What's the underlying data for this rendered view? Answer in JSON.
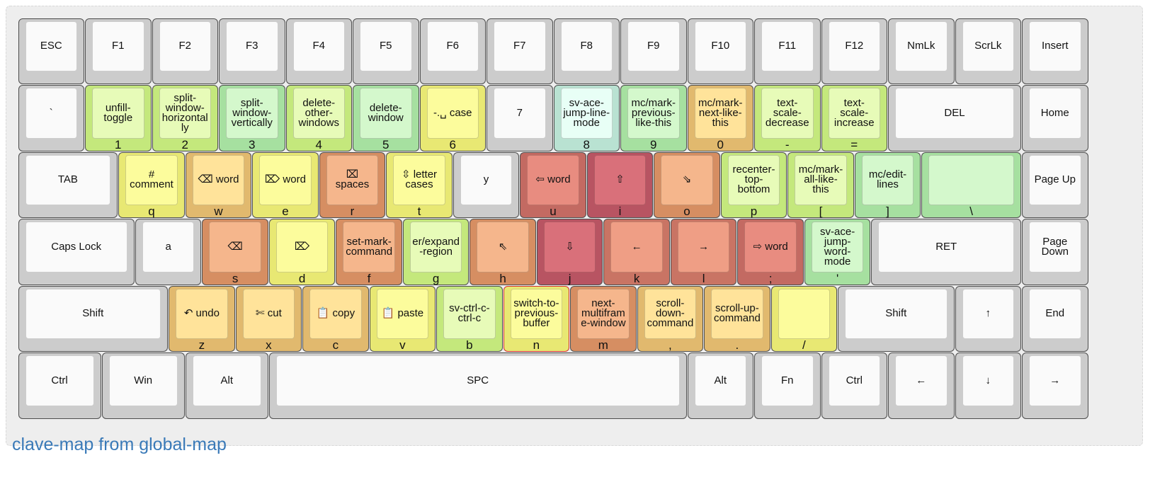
{
  "title": "clave-map from global-map",
  "heat_colors": {
    "none": [
      "#cccccc",
      "#fafafa"
    ],
    "yellow": [
      "#e8e873",
      "#fcfc9c"
    ],
    "lime": [
      "#c4e87c",
      "#e7fbb8"
    ],
    "green": [
      "#a6e0a0",
      "#d4f8cc"
    ],
    "mint": [
      "#b9e2d2",
      "#e8fff6"
    ],
    "gold": [
      "#e1b96e",
      "#ffe39a"
    ],
    "peach": [
      "#d68e62",
      "#f5b68c"
    ],
    "orange": [
      "#c97464",
      "#ef9e85"
    ],
    "salmon": [
      "#c36a62",
      "#e88c80"
    ],
    "red": [
      "#b85462",
      "#d9707a"
    ]
  },
  "rows": [
    [
      {
        "label": "ESC",
        "sub": "",
        "heat": "none"
      },
      {
        "label": "F1",
        "sub": "",
        "heat": "none"
      },
      {
        "label": "F2",
        "sub": "",
        "heat": "none"
      },
      {
        "label": "F3",
        "sub": "",
        "heat": "none"
      },
      {
        "label": "F4",
        "sub": "",
        "heat": "none"
      },
      {
        "label": "F5",
        "sub": "",
        "heat": "none"
      },
      {
        "label": "F6",
        "sub": "",
        "heat": "none"
      },
      {
        "label": "F7",
        "sub": "",
        "heat": "none"
      },
      {
        "label": "F8",
        "sub": "",
        "heat": "none"
      },
      {
        "label": "F9",
        "sub": "",
        "heat": "none"
      },
      {
        "label": "F10",
        "sub": "",
        "heat": "none"
      },
      {
        "label": "F11",
        "sub": "",
        "heat": "none"
      },
      {
        "label": "F12",
        "sub": "",
        "heat": "none"
      },
      {
        "label": "NmLk",
        "sub": "",
        "heat": "none"
      },
      {
        "label": "ScrLk",
        "sub": "",
        "heat": "none"
      },
      {
        "label": "Insert",
        "sub": "",
        "heat": "none"
      }
    ],
    [
      {
        "label": "`",
        "sub": "",
        "heat": "none"
      },
      {
        "label": "unfill-toggle",
        "sub": "1",
        "heat": "lime"
      },
      {
        "label": "split-window-horizontally",
        "sub": "2",
        "heat": "lime"
      },
      {
        "label": "split-window-vertically",
        "sub": "3",
        "heat": "green"
      },
      {
        "label": "delete-other-windows",
        "sub": "4",
        "heat": "lime"
      },
      {
        "label": "delete-window",
        "sub": "5",
        "heat": "green"
      },
      {
        "label": "-.␣ case",
        "sub": "6",
        "heat": "yellow"
      },
      {
        "label": "7",
        "sub": "",
        "heat": "none"
      },
      {
        "label": "sv-ace-jump-line-mode",
        "sub": "8",
        "heat": "mint"
      },
      {
        "label": "mc/mark-previous-like-this",
        "sub": "9",
        "heat": "green"
      },
      {
        "label": "mc/mark-next-like-this",
        "sub": "0",
        "heat": "gold"
      },
      {
        "label": "text-scale-decrease",
        "sub": "-",
        "heat": "lime"
      },
      {
        "label": "text-scale-increase",
        "sub": "=",
        "heat": "lime"
      },
      {
        "label": "DEL",
        "sub": "",
        "heat": "none"
      },
      {
        "label": "Home",
        "sub": "",
        "heat": "none"
      }
    ],
    [
      {
        "label": "TAB",
        "sub": "",
        "heat": "none"
      },
      {
        "label": "# comment",
        "sub": "q",
        "heat": "yellow"
      },
      {
        "label": "⌫ word",
        "sub": "w",
        "heat": "gold"
      },
      {
        "label": "⌦ word",
        "sub": "e",
        "heat": "yellow"
      },
      {
        "label": "⌧ spaces",
        "sub": "r",
        "heat": "peach"
      },
      {
        "label": "⇳ letter cases",
        "sub": "t",
        "heat": "yellow"
      },
      {
        "label": "y",
        "sub": "",
        "heat": "none"
      },
      {
        "label": "⇦ word",
        "sub": "u",
        "heat": "salmon"
      },
      {
        "label": "⇧",
        "sub": "i",
        "heat": "red"
      },
      {
        "label": "⇘",
        "sub": "o",
        "heat": "peach"
      },
      {
        "label": "recenter-top-bottom",
        "sub": "p",
        "heat": "lime"
      },
      {
        "label": "mc/mark-all-like-this",
        "sub": "[",
        "heat": "lime"
      },
      {
        "label": "mc/edit-lines",
        "sub": "]",
        "heat": "green"
      },
      {
        "label": "",
        "sub": "\\",
        "heat": "green"
      },
      {
        "label": "Page Up",
        "sub": "",
        "heat": "none"
      }
    ],
    [
      {
        "label": "Caps Lock",
        "sub": "",
        "heat": "none"
      },
      {
        "label": "a",
        "sub": "",
        "heat": "none"
      },
      {
        "label": "⌫",
        "sub": "s",
        "heat": "peach"
      },
      {
        "label": "⌦",
        "sub": "d",
        "heat": "yellow"
      },
      {
        "label": "set-mark-command",
        "sub": "f",
        "heat": "peach"
      },
      {
        "label": "er/expand-region",
        "sub": "g",
        "heat": "lime"
      },
      {
        "label": "⇖",
        "sub": "h",
        "heat": "peach"
      },
      {
        "label": "⇩",
        "sub": "j",
        "heat": "red"
      },
      {
        "label": "←",
        "sub": "k",
        "heat": "orange"
      },
      {
        "label": "→",
        "sub": "l",
        "heat": "orange"
      },
      {
        "label": "⇨ word",
        "sub": ";",
        "heat": "salmon"
      },
      {
        "label": "sv-ace-jump-word-mode",
        "sub": "'",
        "heat": "green"
      },
      {
        "label": "RET",
        "sub": "",
        "heat": "none"
      },
      {
        "label": "Page Down",
        "sub": "",
        "heat": "none"
      }
    ],
    [
      {
        "label": "Shift",
        "sub": "",
        "heat": "none"
      },
      {
        "label": "↶ undo",
        "sub": "z",
        "heat": "gold"
      },
      {
        "label": "✄ cut",
        "sub": "x",
        "heat": "gold"
      },
      {
        "label": "📋 copy",
        "sub": "c",
        "heat": "gold"
      },
      {
        "label": "📋 paste",
        "sub": "v",
        "heat": "yellow"
      },
      {
        "label": "sv-ctrl-c-ctrl-c",
        "sub": "b",
        "heat": "lime"
      },
      {
        "label": "switch-to-previous-buffer",
        "sub": "n",
        "heat": "yellow",
        "outlined": true
      },
      {
        "label": "next-multiframe-window",
        "sub": "m",
        "heat": "peach"
      },
      {
        "label": "scroll-down-command",
        "sub": ",",
        "heat": "gold"
      },
      {
        "label": "scroll-up-command",
        "sub": ".",
        "heat": "gold"
      },
      {
        "label": "",
        "sub": "/",
        "heat": "yellow"
      },
      {
        "label": "Shift",
        "sub": "",
        "heat": "none"
      },
      {
        "label": "↑",
        "sub": "",
        "heat": "none"
      },
      {
        "label": "End",
        "sub": "",
        "heat": "none"
      }
    ],
    [
      {
        "label": "Ctrl",
        "sub": "",
        "heat": "none"
      },
      {
        "label": "Win",
        "sub": "",
        "heat": "none"
      },
      {
        "label": "Alt",
        "sub": "",
        "heat": "none"
      },
      {
        "label": "SPC",
        "sub": "",
        "heat": "none"
      },
      {
        "label": "Alt",
        "sub": "",
        "heat": "none"
      },
      {
        "label": "Fn",
        "sub": "",
        "heat": "none"
      },
      {
        "label": "Ctrl",
        "sub": "",
        "heat": "none"
      },
      {
        "label": "←",
        "sub": "",
        "heat": "none"
      },
      {
        "label": "↓",
        "sub": "",
        "heat": "none"
      },
      {
        "label": "→",
        "sub": "",
        "heat": "none"
      }
    ]
  ]
}
